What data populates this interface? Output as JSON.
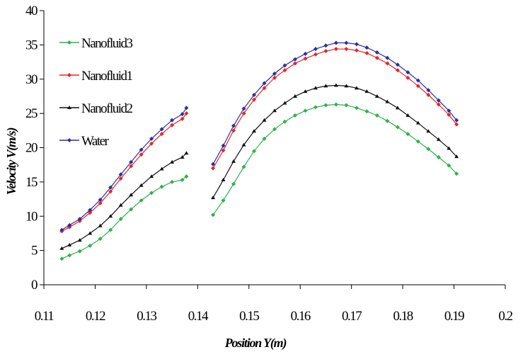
{
  "chart_data": {
    "type": "line",
    "title": "",
    "xlabel": "Position Y(m)",
    "ylabel": "Velocity V(m/s)",
    "xlim": [
      0.11,
      0.2
    ],
    "ylim": [
      0,
      40
    ],
    "x_ticks": [
      "0.11",
      "0.12",
      "0.13",
      "0.14",
      "0.15",
      "0.16",
      "0.17",
      "0.18",
      "0.19",
      "0.2"
    ],
    "y_ticks": [
      "0",
      "5",
      "10",
      "15",
      "20",
      "25",
      "30",
      "35",
      "40"
    ],
    "grid": false,
    "legend_position": "top-left",
    "series": [
      {
        "name": "Nanofluid3",
        "color": "#2db34a",
        "marker": "diamond",
        "segments": [
          [
            [
              0.1135,
              3.8
            ],
            [
              0.115,
              4.3
            ],
            [
              0.117,
              4.9
            ],
            [
              0.119,
              5.7
            ],
            [
              0.121,
              6.7
            ],
            [
              0.123,
              8.0
            ],
            [
              0.125,
              9.6
            ],
            [
              0.127,
              11.0
            ],
            [
              0.129,
              12.3
            ],
            [
              0.131,
              13.4
            ],
            [
              0.133,
              14.3
            ],
            [
              0.135,
              15.0
            ],
            [
              0.137,
              15.3
            ],
            [
              0.1378,
              15.8
            ]
          ],
          [
            [
              0.143,
              10.2
            ],
            [
              0.145,
              12.3
            ],
            [
              0.147,
              14.7
            ],
            [
              0.149,
              17.2
            ],
            [
              0.151,
              19.5
            ],
            [
              0.153,
              21.3
            ],
            [
              0.155,
              22.7
            ],
            [
              0.157,
              23.8
            ],
            [
              0.159,
              24.7
            ],
            [
              0.161,
              25.4
            ],
            [
              0.163,
              25.9
            ],
            [
              0.165,
              26.2
            ],
            [
              0.167,
              26.3
            ],
            [
              0.169,
              26.2
            ],
            [
              0.171,
              25.8
            ],
            [
              0.173,
              25.3
            ],
            [
              0.175,
              24.7
            ],
            [
              0.177,
              23.9
            ],
            [
              0.179,
              23.0
            ],
            [
              0.181,
              22.0
            ],
            [
              0.183,
              20.9
            ],
            [
              0.185,
              19.8
            ],
            [
              0.187,
              18.6
            ],
            [
              0.189,
              17.4
            ],
            [
              0.1905,
              16.2
            ]
          ]
        ]
      },
      {
        "name": "Nanofluid1",
        "color": "#e8242a",
        "marker": "diamond",
        "segments": [
          [
            [
              0.1135,
              7.8
            ],
            [
              0.115,
              8.4
            ],
            [
              0.117,
              9.3
            ],
            [
              0.119,
              10.5
            ],
            [
              0.121,
              11.9
            ],
            [
              0.123,
              13.6
            ],
            [
              0.125,
              15.5
            ],
            [
              0.127,
              17.3
            ],
            [
              0.129,
              19.0
            ],
            [
              0.131,
              20.6
            ],
            [
              0.133,
              22.0
            ],
            [
              0.135,
              23.3
            ],
            [
              0.137,
              24.2
            ],
            [
              0.1378,
              25.0
            ]
          ],
          [
            [
              0.143,
              17.0
            ],
            [
              0.145,
              19.6
            ],
            [
              0.147,
              22.5
            ],
            [
              0.149,
              25.0
            ],
            [
              0.151,
              27.0
            ],
            [
              0.153,
              28.7
            ],
            [
              0.155,
              30.2
            ],
            [
              0.157,
              31.3
            ],
            [
              0.159,
              32.3
            ],
            [
              0.161,
              33.0
            ],
            [
              0.163,
              33.6
            ],
            [
              0.165,
              34.1
            ],
            [
              0.167,
              34.4
            ],
            [
              0.169,
              34.4
            ],
            [
              0.171,
              34.2
            ],
            [
              0.173,
              33.8
            ],
            [
              0.175,
              33.1
            ],
            [
              0.177,
              32.3
            ],
            [
              0.179,
              31.3
            ],
            [
              0.181,
              30.2
            ],
            [
              0.183,
              29.0
            ],
            [
              0.185,
              27.7
            ],
            [
              0.187,
              26.3
            ],
            [
              0.189,
              24.8
            ],
            [
              0.1905,
              23.4
            ]
          ]
        ]
      },
      {
        "name": "Nanofluid2",
        "color": "#111111",
        "marker": "triangle",
        "segments": [
          [
            [
              0.1135,
              5.3
            ],
            [
              0.115,
              5.8
            ],
            [
              0.117,
              6.5
            ],
            [
              0.119,
              7.5
            ],
            [
              0.121,
              8.6
            ],
            [
              0.123,
              10.0
            ],
            [
              0.125,
              11.6
            ],
            [
              0.127,
              13.1
            ],
            [
              0.129,
              14.5
            ],
            [
              0.131,
              15.8
            ],
            [
              0.133,
              16.9
            ],
            [
              0.135,
              17.9
            ],
            [
              0.137,
              18.6
            ],
            [
              0.1378,
              19.2
            ]
          ],
          [
            [
              0.143,
              12.7
            ],
            [
              0.145,
              15.3
            ],
            [
              0.147,
              18.0
            ],
            [
              0.149,
              20.4
            ],
            [
              0.151,
              22.4
            ],
            [
              0.153,
              24.0
            ],
            [
              0.155,
              25.4
            ],
            [
              0.157,
              26.5
            ],
            [
              0.159,
              27.5
            ],
            [
              0.161,
              28.2
            ],
            [
              0.163,
              28.7
            ],
            [
              0.165,
              29.0
            ],
            [
              0.167,
              29.1
            ],
            [
              0.169,
              29.0
            ],
            [
              0.171,
              28.7
            ],
            [
              0.173,
              28.2
            ],
            [
              0.175,
              27.5
            ],
            [
              0.177,
              26.7
            ],
            [
              0.179,
              25.8
            ],
            [
              0.181,
              24.7
            ],
            [
              0.183,
              23.6
            ],
            [
              0.185,
              22.4
            ],
            [
              0.187,
              21.2
            ],
            [
              0.189,
              19.9
            ],
            [
              0.1905,
              18.7
            ]
          ]
        ]
      },
      {
        "name": "Water",
        "color": "#2b2f9e",
        "marker": "diamond",
        "segments": [
          [
            [
              0.1135,
              8.0
            ],
            [
              0.115,
              8.7
            ],
            [
              0.117,
              9.6
            ],
            [
              0.119,
              10.9
            ],
            [
              0.121,
              12.4
            ],
            [
              0.123,
              14.2
            ],
            [
              0.125,
              16.1
            ],
            [
              0.127,
              17.9
            ],
            [
              0.129,
              19.7
            ],
            [
              0.131,
              21.3
            ],
            [
              0.133,
              22.7
            ],
            [
              0.135,
              24.0
            ],
            [
              0.137,
              24.9
            ],
            [
              0.1378,
              25.8
            ]
          ],
          [
            [
              0.143,
              17.6
            ],
            [
              0.145,
              20.3
            ],
            [
              0.147,
              23.2
            ],
            [
              0.149,
              25.7
            ],
            [
              0.151,
              27.7
            ],
            [
              0.153,
              29.4
            ],
            [
              0.155,
              30.8
            ],
            [
              0.157,
              32.0
            ],
            [
              0.159,
              32.9
            ],
            [
              0.161,
              33.7
            ],
            [
              0.163,
              34.4
            ],
            [
              0.165,
              34.9
            ],
            [
              0.167,
              35.3
            ],
            [
              0.169,
              35.3
            ],
            [
              0.171,
              35.1
            ],
            [
              0.173,
              34.6
            ],
            [
              0.175,
              33.9
            ],
            [
              0.177,
              33.1
            ],
            [
              0.179,
              32.1
            ],
            [
              0.181,
              31.0
            ],
            [
              0.183,
              29.8
            ],
            [
              0.185,
              28.4
            ],
            [
              0.187,
              26.9
            ],
            [
              0.189,
              25.4
            ],
            [
              0.1905,
              24.0
            ]
          ]
        ]
      }
    ]
  }
}
